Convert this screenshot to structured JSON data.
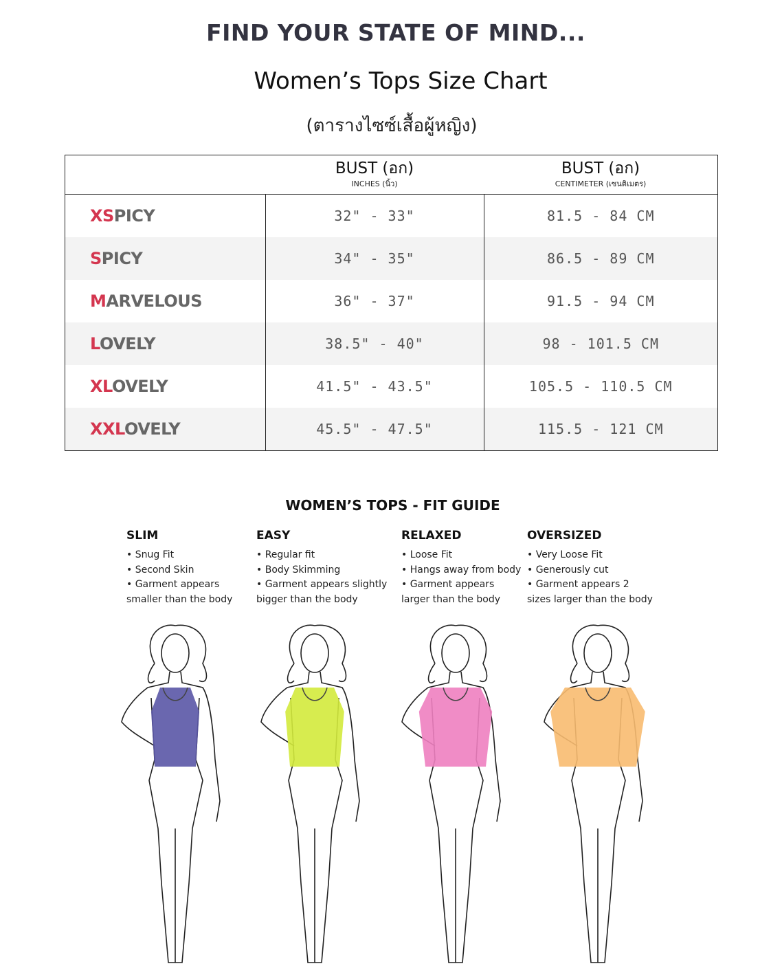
{
  "header": {
    "tagline": "FIND YOUR STATE OF MIND...",
    "title": "Women’s Tops  Size Chart",
    "subtitle": "(ตารางไซซ์เสื้อผู้หญิง)"
  },
  "table": {
    "columns": [
      {
        "title": "BUST (อก)",
        "unit": "INCHES (นิ้ว)"
      },
      {
        "title": "BUST (อก)",
        "unit": "CENTIMETER (เซนติเมตร)"
      }
    ],
    "accent_color": "#d4364f",
    "rows": [
      {
        "prefix": "XS",
        "name": "PICY",
        "inches": "32\" - 33\"",
        "cm": "81.5 - 84 CM"
      },
      {
        "prefix": "S",
        "name": "PICY",
        "inches": "34\" - 35\"",
        "cm": "86.5 - 89 CM"
      },
      {
        "prefix": "M",
        "name": "ARVELOUS",
        "inches": "36\" - 37\"",
        "cm": "91.5 - 94 CM"
      },
      {
        "prefix": "L",
        "name": "OVELY",
        "inches": "38.5\" - 40\"",
        "cm": "98 - 101.5 CM"
      },
      {
        "prefix": "XL",
        "name": "OVELY",
        "inches": "41.5\" - 43.5\"",
        "cm": "105.5 - 110.5 CM"
      },
      {
        "prefix": "XXL",
        "name": "OVELY",
        "inches": "45.5\" - 47.5\"",
        "cm": "115.5 - 121 CM"
      }
    ]
  },
  "fit_guide": {
    "title": "WOMEN’S TOPS - FIT GUIDE",
    "fits": [
      {
        "name": "SLIM",
        "lines": [
          "• Snug Fit",
          "• Second Skin",
          "• Garment appears",
          "smaller than the body"
        ],
        "color": "#5a57a6"
      },
      {
        "name": "EASY",
        "lines": [
          "• Regular fit",
          "• Body Skimming",
          "• Garment appears slightly",
          "bigger than the body"
        ],
        "color": "#d3ea3c"
      },
      {
        "name": "RELAXED",
        "lines": [
          "• Loose Fit",
          "• Hangs away from body",
          "• Garment appears",
          "larger than the body"
        ],
        "color": "#ee7fc0"
      },
      {
        "name": "OVERSIZED",
        "lines": [
          "• Very Loose Fit",
          "• Generously cut",
          "• Garment appears 2",
          "sizes larger than the body"
        ],
        "color": "#f8bb70"
      }
    ]
  }
}
